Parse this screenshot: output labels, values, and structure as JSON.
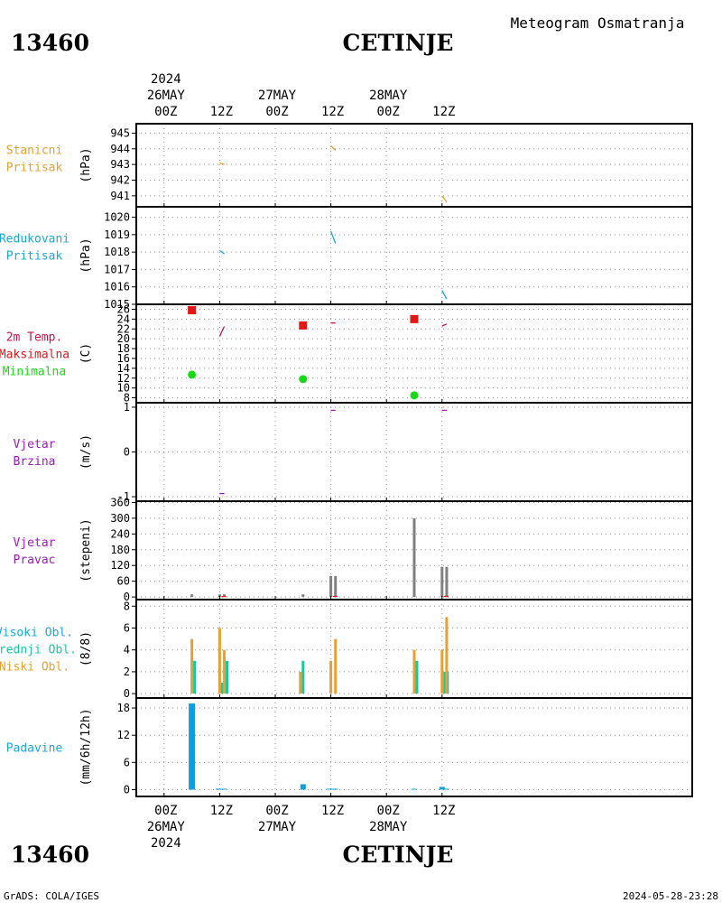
{
  "header": {
    "station_id": "13460",
    "station_name": "CETINJE",
    "chart_title": "Meteogram Osmatranja",
    "top_axis": [
      {
        "hour": "00Z",
        "day": "26MAY",
        "year": "2024"
      },
      {
        "hour": "12Z",
        "day": "",
        "year": ""
      },
      {
        "hour": "00Z",
        "day": "27MAY",
        "year": ""
      },
      {
        "hour": "12Z",
        "day": "",
        "year": ""
      },
      {
        "hour": "00Z",
        "day": "28MAY",
        "year": ""
      },
      {
        "hour": "12Z",
        "day": "",
        "year": ""
      }
    ]
  },
  "footer": {
    "station_id": "13460",
    "station_name": "CETINJE",
    "credit": "GrADS: COLA/IGES",
    "timestamp": "2024-05-28-23:28",
    "bottom_axis": [
      {
        "hour": "00Z",
        "day": "26MAY",
        "year": "2024"
      },
      {
        "hour": "12Z",
        "day": "",
        "year": ""
      },
      {
        "hour": "00Z",
        "day": "27MAY",
        "year": ""
      },
      {
        "hour": "12Z",
        "day": "",
        "year": ""
      },
      {
        "hour": "00Z",
        "day": "28MAY",
        "year": ""
      },
      {
        "hour": "12Z",
        "day": "",
        "year": ""
      }
    ]
  },
  "colors": {
    "orange": "#e8a030",
    "cyan": "#18a8d8",
    "red": "#e01818",
    "crimson": "#c8144c",
    "green": "#18d818",
    "purple": "#a018c0",
    "gray": "#808080",
    "teal": "#18c8a0",
    "blue": "#0aa0e0"
  },
  "chart_data": {
    "type": "meteogram",
    "x_unit": "hours since 2024-05-26 00Z",
    "xlim": [
      -6,
      114
    ],
    "grid": true,
    "panels": [
      {
        "id": "station_pressure",
        "labels": [
          {
            "text": "Stanicni",
            "color": "#e8a030"
          },
          {
            "text": "Pritisak",
            "color": "#e8a030"
          }
        ],
        "unit": "(hPa)",
        "ylim": [
          940.3,
          945.6
        ],
        "ticks": [
          941,
          942,
          943,
          944,
          945
        ],
        "series": [
          {
            "type": "line",
            "color": "#e8a030",
            "points": [
              [
                12,
                943.1
              ],
              [
                13,
                943.0
              ]
            ]
          },
          {
            "type": "line",
            "color": "#e8a030",
            "points": [
              [
                36,
                944.2
              ],
              [
                37,
                943.9
              ]
            ]
          },
          {
            "type": "line",
            "color": "#e8a030",
            "points": [
              [
                60,
                941.0
              ],
              [
                61,
                940.6
              ]
            ]
          }
        ]
      },
      {
        "id": "reduced_pressure",
        "labels": [
          {
            "text": "Redukovani",
            "color": "#18a8d8"
          },
          {
            "text": "Pritisak",
            "color": "#18a8d8"
          }
        ],
        "unit": "(hPa)",
        "ylim": [
          1015,
          1020.6
        ],
        "ticks": [
          1015,
          1016,
          1017,
          1018,
          1019,
          1020
        ],
        "series": [
          {
            "type": "line",
            "color": "#18a8d8",
            "points": [
              [
                12,
                1018.1
              ],
              [
                13,
                1017.9
              ]
            ]
          },
          {
            "type": "line",
            "color": "#18a8d8",
            "points": [
              [
                36,
                1019.2
              ],
              [
                37,
                1018.5
              ]
            ]
          },
          {
            "type": "line",
            "color": "#18a8d8",
            "points": [
              [
                60,
                1015.8
              ],
              [
                61,
                1015.3
              ]
            ]
          }
        ]
      },
      {
        "id": "temperature",
        "labels": [
          {
            "text": "2m Temp.",
            "color": "#c8144c"
          },
          {
            "text": "Maksimalna",
            "color": "#e01818"
          },
          {
            "text": "Minimalna",
            "color": "#18d818"
          }
        ],
        "unit": "(C)",
        "ylim": [
          7,
          27
        ],
        "ticks": [
          8,
          10,
          12,
          14,
          16,
          18,
          20,
          22,
          24,
          26
        ],
        "series": [
          {
            "type": "line",
            "color": "#c8144c",
            "points": [
              [
                12,
                20.5
              ],
              [
                13,
                22.5
              ]
            ]
          },
          {
            "type": "line",
            "color": "#c8144c",
            "points": [
              [
                36,
                23.2
              ],
              [
                37,
                23.2
              ]
            ]
          },
          {
            "type": "line",
            "color": "#c8144c",
            "points": [
              [
                60,
                22.6
              ],
              [
                61,
                23.0
              ]
            ]
          },
          {
            "type": "square",
            "color": "#e01818",
            "points": [
              [
                6,
                25.8
              ],
              [
                30,
                22.7
              ],
              [
                54,
                24.0
              ]
            ]
          },
          {
            "type": "circle",
            "color": "#18d818",
            "points": [
              [
                6,
                12.7
              ],
              [
                30,
                11.8
              ],
              [
                54,
                8.5
              ]
            ]
          }
        ]
      },
      {
        "id": "wind_speed",
        "labels": [
          {
            "text": "Vjetar",
            "color": "#a018c0"
          },
          {
            "text": "Brzina",
            "color": "#a018c0"
          }
        ],
        "unit": "(m/s)",
        "ylim": [
          -1.1,
          1.1
        ],
        "ticks": [
          -1,
          0,
          1
        ],
        "series": [
          {
            "type": "line",
            "color": "#a018c0",
            "points": [
              [
                12,
                -0.93
              ],
              [
                13,
                -0.93
              ]
            ]
          },
          {
            "type": "line",
            "color": "#a018c0",
            "points": [
              [
                36,
                0.93
              ],
              [
                37,
                0.93
              ]
            ]
          },
          {
            "type": "line",
            "color": "#a018c0",
            "points": [
              [
                60,
                0.93
              ],
              [
                61,
                0.93
              ]
            ]
          }
        ]
      },
      {
        "id": "wind_direction",
        "labels": [
          {
            "text": "Vjetar",
            "color": "#a018c0"
          },
          {
            "text": "Pravac",
            "color": "#a018c0"
          }
        ],
        "unit": "(stepeni)",
        "ylim": [
          -10,
          365
        ],
        "ticks": [
          0,
          60,
          120,
          180,
          240,
          300,
          360
        ],
        "bars": [
          {
            "x": 6,
            "value": 10,
            "color": "#808080"
          },
          {
            "x": 12,
            "value": 10,
            "color": "#808080"
          },
          {
            "x": 13,
            "value": 10,
            "color": "#808080"
          },
          {
            "x": 30,
            "value": 10,
            "color": "#808080"
          },
          {
            "x": 36,
            "value": 80,
            "color": "#808080"
          },
          {
            "x": 37,
            "value": 80,
            "color": "#808080"
          },
          {
            "x": 54,
            "value": 300,
            "color": "#808080"
          },
          {
            "x": 60,
            "value": 115,
            "color": "#808080"
          },
          {
            "x": 61,
            "value": 115,
            "color": "#808080"
          }
        ],
        "series": [
          {
            "type": "line",
            "color": "#e01818",
            "points": [
              [
                12.4,
                2
              ],
              [
                13.4,
                2
              ]
            ]
          },
          {
            "type": "line",
            "color": "#e01818",
            "points": [
              [
                36.4,
                2
              ],
              [
                37.4,
                2
              ]
            ]
          },
          {
            "type": "line",
            "color": "#e01818",
            "points": [
              [
                60.4,
                2
              ],
              [
                61.4,
                2
              ]
            ]
          }
        ]
      },
      {
        "id": "clouds",
        "labels": [
          {
            "text": "Visoki Obl.",
            "color": "#18a8d8"
          },
          {
            "text": "Srednji Obl.",
            "color": "#18c8a0"
          },
          {
            "text": "Niski Obl.",
            "color": "#e8a030"
          }
        ],
        "unit": "(8/8)",
        "ylim": [
          -0.4,
          8.6
        ],
        "ticks": [
          0,
          2,
          4,
          6,
          8
        ],
        "bars": [
          {
            "x": 6,
            "value": 5,
            "color": "#e8a030",
            "offset": 0
          },
          {
            "x": 6,
            "value": 3,
            "color": "#18c8a0",
            "offset": 1
          },
          {
            "x": 12,
            "value": 6,
            "color": "#e8a030",
            "offset": 0
          },
          {
            "x": 12,
            "value": 1,
            "color": "#18c8a0",
            "offset": 1
          },
          {
            "x": 13,
            "value": 4,
            "color": "#e8a030",
            "offset": 0
          },
          {
            "x": 13,
            "value": 3,
            "color": "#18c8a0",
            "offset": 1
          },
          {
            "x": 30,
            "value": 3,
            "color": "#18c8a0",
            "offset": 0
          },
          {
            "x": 30,
            "value": 2,
            "color": "#e8a030",
            "offset": -1
          },
          {
            "x": 36,
            "value": 3,
            "color": "#e8a030",
            "offset": 0
          },
          {
            "x": 37,
            "value": 5,
            "color": "#e8a030",
            "offset": 0
          },
          {
            "x": 54,
            "value": 4,
            "color": "#e8a030",
            "offset": 0
          },
          {
            "x": 54,
            "value": 3,
            "color": "#18c8a0",
            "offset": 1
          },
          {
            "x": 60,
            "value": 4,
            "color": "#e8a030",
            "offset": 0
          },
          {
            "x": 60,
            "value": 2,
            "color": "#18c8a0",
            "offset": 1
          },
          {
            "x": 60,
            "value": 2,
            "color": "#18a8d8",
            "offset": 2
          },
          {
            "x": 61,
            "value": 7,
            "color": "#e8a030",
            "offset": 0
          }
        ]
      },
      {
        "id": "precipitation",
        "labels": [
          {
            "text": "Padavine",
            "color": "#18a8d8"
          }
        ],
        "unit": "(mm/6h/12h)",
        "ylim": [
          -1.5,
          20.2
        ],
        "ticks": [
          0,
          6,
          12,
          18
        ],
        "bars": [
          {
            "x": 6,
            "value": 19,
            "color": "#0aa0e0",
            "width": 7
          },
          {
            "x": 12.3,
            "value": 0.2,
            "color": "#0aa0e0",
            "width": 12
          },
          {
            "x": 30,
            "value": 1.2,
            "color": "#0aa0e0",
            "width": 6
          },
          {
            "x": 36.3,
            "value": 0.2,
            "color": "#0aa0e0",
            "width": 12
          },
          {
            "x": 54,
            "value": 0.2,
            "color": "#0aa0e0",
            "width": 5
          },
          {
            "x": 60,
            "value": 0.6,
            "color": "#0aa0e0",
            "width": 6
          },
          {
            "x": 61,
            "value": 0.2,
            "color": "#0aa0e0",
            "width": 5
          }
        ]
      }
    ]
  }
}
